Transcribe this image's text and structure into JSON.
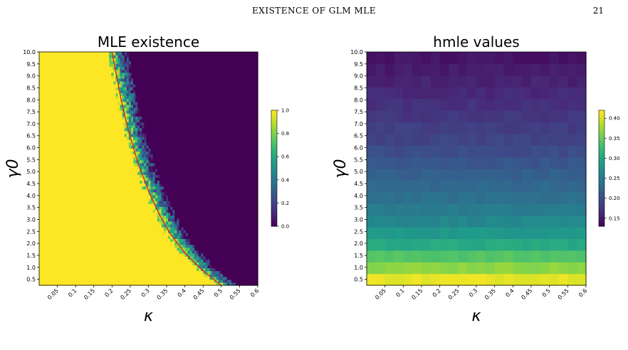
{
  "header": {
    "running_title": "EXISTENCE OF GLM MLE",
    "page_number": "21"
  },
  "caption_fragment": "",
  "colormap": [
    "#440154",
    "#482878",
    "#3e4989",
    "#31688e",
    "#26828e",
    "#1f9e89",
    "#35b779",
    "#6ece58",
    "#b5de2b",
    "#fde725"
  ],
  "chart_data": [
    {
      "type": "heatmap",
      "title": "MLE existence",
      "xlabel": "κ",
      "ylabel": "γ0",
      "x_ticks": [
        "0.05",
        "0.1",
        "0.15",
        "0.2",
        "0.25",
        "0.3",
        "0.35",
        "0.4",
        "0.45",
        "0.5",
        "0.55",
        "0.6"
      ],
      "y_ticks": [
        "0.5",
        "1.0",
        "1.5",
        "2.0",
        "2.5",
        "3.0",
        "3.5",
        "4.0",
        "4.5",
        "5.0",
        "5.5",
        "6.0",
        "6.5",
        "7.0",
        "7.5",
        "8.0",
        "8.5",
        "9.0",
        "9.5",
        "10.0"
      ],
      "xlim": [
        0,
        0.6
      ],
      "ylim": [
        0.25,
        10.0
      ],
      "colorbar": {
        "min": 0.0,
        "max": 1.0,
        "ticks": [
          "0.0",
          "0.2",
          "0.4",
          "0.6",
          "0.8",
          "1.0"
        ]
      },
      "boundary_curve": {
        "color": "#d62728",
        "points": [
          [
            0.5,
            0.25
          ],
          [
            0.47,
            0.6
          ],
          [
            0.44,
            1.0
          ],
          [
            0.4,
            1.6
          ],
          [
            0.36,
            2.4
          ],
          [
            0.33,
            3.2
          ],
          [
            0.3,
            4.2
          ],
          [
            0.27,
            5.4
          ],
          [
            0.245,
            6.7
          ],
          [
            0.225,
            8.0
          ],
          [
            0.21,
            9.2
          ],
          [
            0.2,
            10.0
          ]
        ]
      },
      "transition_width": 0.045,
      "description": "value is 1.0 left of the red phase-transition curve and 0.0 to its right, with a noisy blend just to the right of the curve"
    },
    {
      "type": "heatmap",
      "title": "hmle values",
      "xlabel": "κ",
      "ylabel": "γ0",
      "x_ticks": [
        "0.05",
        "0.1",
        "0.15",
        "0.2",
        "0.25",
        "0.3",
        "0.35",
        "0.4",
        "0.45",
        "0.5",
        "0.55",
        "0.6"
      ],
      "y_ticks": [
        "0.5",
        "1.0",
        "1.5",
        "2.0",
        "2.5",
        "3.0",
        "3.5",
        "4.0",
        "4.5",
        "5.0",
        "5.5",
        "6.0",
        "6.5",
        "7.0",
        "7.5",
        "8.0",
        "8.5",
        "9.0",
        "9.5",
        "10.0"
      ],
      "xlim": [
        0,
        0.6
      ],
      "ylim": [
        0.25,
        10.0
      ],
      "colorbar": {
        "min": 0.13,
        "max": 0.42,
        "ticks": [
          "0.15",
          "0.20",
          "0.25",
          "0.30",
          "0.35",
          "0.40"
        ]
      },
      "row_values": {
        "gamma0": [
          0.5,
          1.0,
          1.5,
          2.0,
          2.5,
          3.0,
          3.5,
          4.0,
          4.5,
          5.0,
          5.5,
          6.0,
          6.5,
          7.0,
          7.5,
          8.0,
          8.5,
          9.0,
          9.5,
          10.0
        ],
        "value": [
          0.41,
          0.37,
          0.34,
          0.305,
          0.285,
          0.265,
          0.25,
          0.238,
          0.228,
          0.218,
          0.208,
          0.198,
          0.19,
          0.183,
          0.176,
          0.17,
          0.164,
          0.158,
          0.152,
          0.146
        ]
      }
    }
  ]
}
